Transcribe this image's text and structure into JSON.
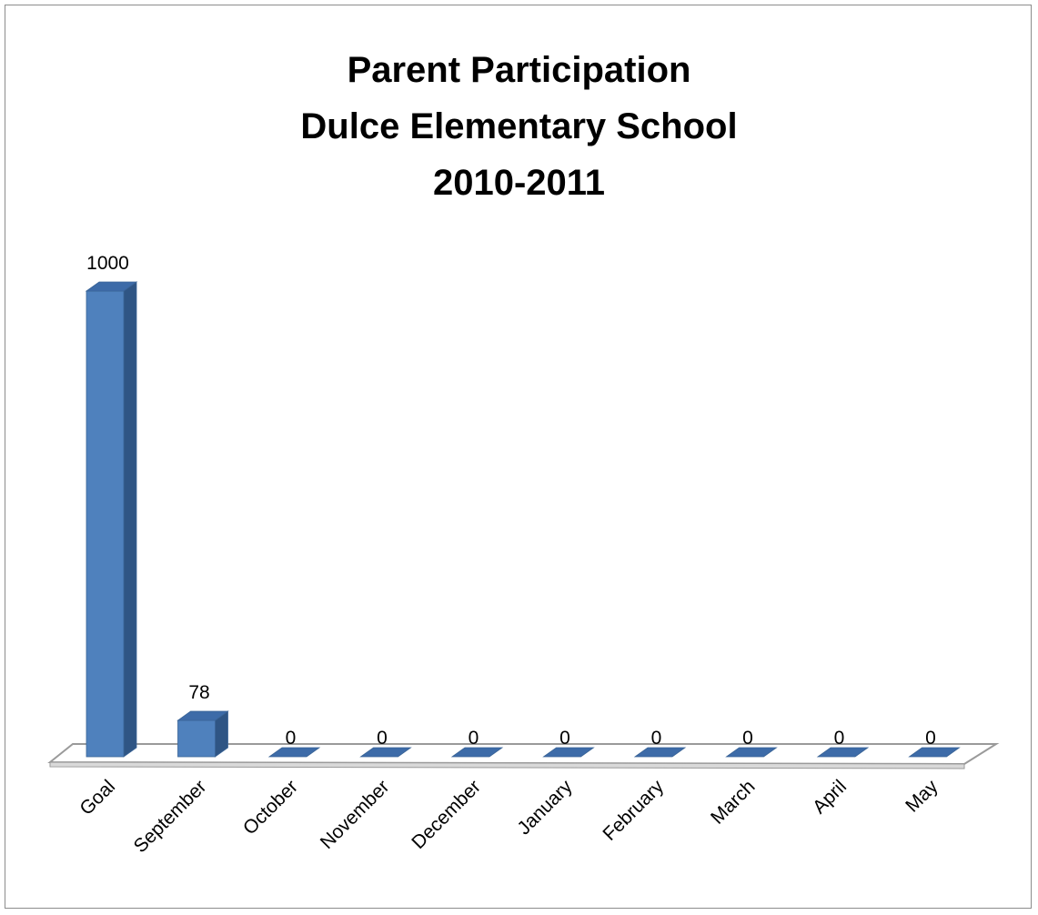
{
  "chart_data": {
    "type": "bar",
    "title": [
      "Parent Participation",
      "Dulce Elementary School",
      "2010-2011"
    ],
    "categories": [
      "Goal",
      "September",
      "October",
      "November",
      "December",
      "January",
      "February",
      "March",
      "April",
      "May"
    ],
    "values": [
      1000,
      78,
      0,
      0,
      0,
      0,
      0,
      0,
      0,
      0
    ],
    "data_labels": [
      "1000",
      "78",
      "0",
      "0",
      "0",
      "0",
      "0",
      "0",
      "0",
      "0"
    ],
    "style": "3d-column",
    "grid": false,
    "legend": "none",
    "ylim": [
      0,
      1000
    ],
    "colors": {
      "bar_front": "#4f81bd",
      "bar_top": "#3d6ba8",
      "bar_side": "#2f5584",
      "bar_edge": "#3a6496",
      "floor_fill": "#ffffff",
      "floor_stroke": "#9a9a9a"
    }
  }
}
